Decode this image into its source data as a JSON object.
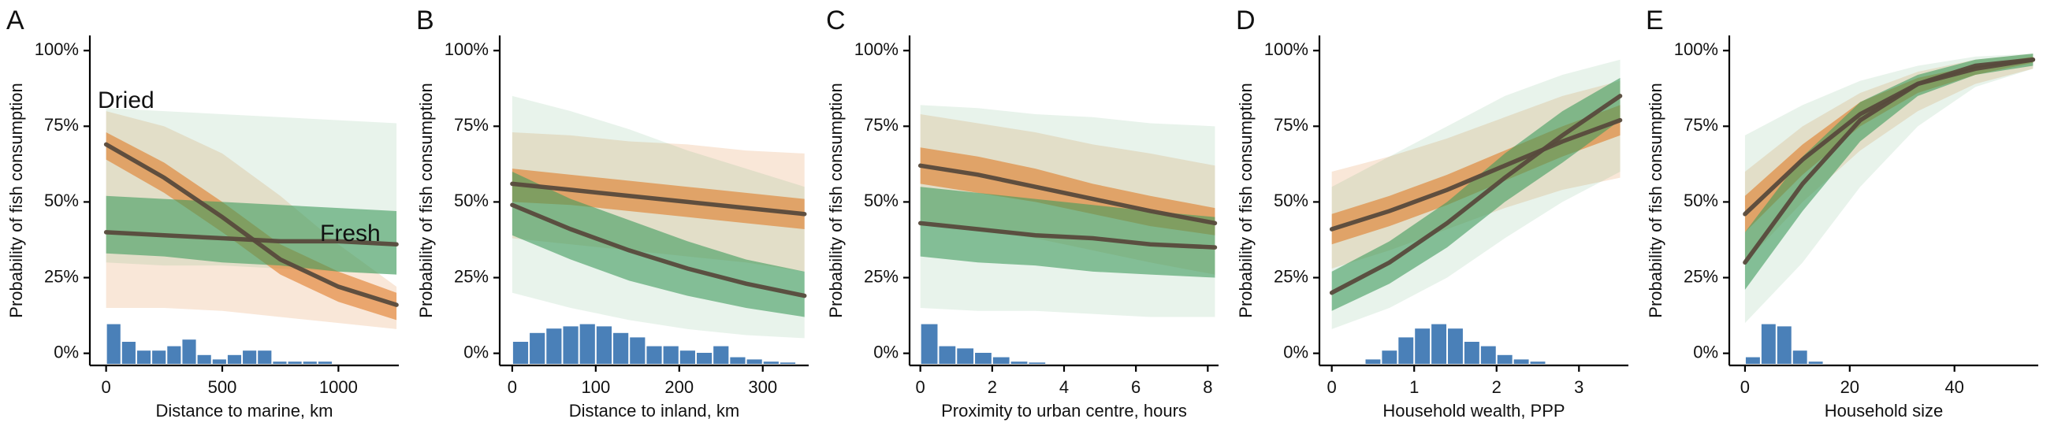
{
  "chart_data": [
    {
      "type": "line",
      "panel": "A",
      "x_label": "Distance to marine, km",
      "y_label": "Probability of fish consumption",
      "xlim": [
        -70,
        1260
      ],
      "ylim": [
        -4,
        105
      ],
      "xticks": [
        0,
        500,
        1000
      ],
      "yticks": [
        {
          "value": 0,
          "label": "0%"
        },
        {
          "value": 25,
          "label": "25%"
        },
        {
          "value": 50,
          "label": "50%"
        },
        {
          "value": 75,
          "label": "75%"
        },
        {
          "value": 100,
          "label": "100%"
        }
      ],
      "line_color": "#574a3c",
      "x": [
        0,
        250,
        500,
        750,
        1000,
        1250
      ],
      "series": [
        {
          "name": "Dried",
          "color": "#e07b28",
          "values": [
            69,
            58,
            45,
            31,
            22,
            16
          ],
          "lower": [
            64,
            53,
            40,
            26,
            17,
            11
          ],
          "upper": [
            73,
            63,
            50,
            36,
            27,
            20
          ],
          "outer_lower": [
            15,
            15,
            14,
            12,
            10,
            8
          ],
          "outer_upper": [
            80,
            75,
            66,
            52,
            36,
            22
          ]
        },
        {
          "name": "Fresh",
          "color": "#3f9b5e",
          "values": [
            40,
            39,
            38,
            37,
            37,
            36
          ],
          "lower": [
            33,
            32,
            30,
            29,
            27,
            26
          ],
          "upper": [
            52,
            51,
            50,
            49,
            48,
            47
          ],
          "outer_lower": [
            30,
            29,
            29,
            28,
            27,
            26
          ],
          "outer_upper": [
            81,
            80,
            79,
            78,
            77,
            76
          ]
        }
      ],
      "hist": {
        "color": "#4a80b8",
        "bins": [
          0,
          65,
          130,
          195,
          260,
          325,
          390,
          455,
          520,
          585,
          650,
          715,
          780,
          845,
          910,
          975
        ],
        "counts": [
          9,
          5,
          3,
          3,
          4,
          5.5,
          2,
          1,
          2,
          3,
          3,
          0.5,
          0.5,
          0.5,
          0.5
        ]
      }
    },
    {
      "type": "line",
      "panel": "B",
      "x_label": "Distance to inland, km",
      "y_label": "Probability of fish consumption",
      "xlim": [
        -15,
        355
      ],
      "ylim": [
        -4,
        105
      ],
      "xticks": [
        0,
        100,
        200,
        300
      ],
      "yticks": [
        {
          "value": 0,
          "label": "0%"
        },
        {
          "value": 25,
          "label": "25%"
        },
        {
          "value": 50,
          "label": "50%"
        },
        {
          "value": 75,
          "label": "75%"
        },
        {
          "value": 100,
          "label": "100%"
        }
      ],
      "line_color": "#574a3c",
      "x": [
        0,
        70,
        140,
        210,
        280,
        350
      ],
      "series": [
        {
          "color": "#e07b28",
          "values": [
            56,
            54,
            52,
            50,
            48,
            46
          ],
          "lower": [
            50,
            49,
            47,
            45,
            43,
            41
          ],
          "upper": [
            61,
            59,
            57,
            55,
            53,
            51
          ],
          "outer_lower": [
            38,
            36,
            34,
            32,
            30,
            27
          ],
          "outer_upper": [
            73,
            72,
            70,
            69,
            67,
            66
          ]
        },
        {
          "color": "#3f9b5e",
          "values": [
            49,
            41,
            34,
            28,
            23,
            19
          ],
          "lower": [
            39,
            31,
            24,
            19,
            15,
            12
          ],
          "upper": [
            60,
            51,
            44,
            37,
            31,
            27
          ],
          "outer_lower": [
            20,
            15,
            11,
            8,
            6,
            5
          ],
          "outer_upper": [
            85,
            80,
            74,
            67,
            61,
            55
          ]
        }
      ],
      "hist": {
        "color": "#4a80b8",
        "bins": [
          0,
          20,
          40,
          60,
          80,
          100,
          120,
          140,
          160,
          180,
          200,
          220,
          240,
          260,
          280,
          300,
          320,
          340
        ],
        "counts": [
          5,
          7,
          8,
          8.5,
          9,
          8.5,
          7,
          6,
          4,
          4,
          3,
          2.5,
          4,
          1.5,
          1,
          0.5,
          0.3
        ]
      }
    },
    {
      "type": "line",
      "panel": "C",
      "x_label": "Proximity to urban centre, hours",
      "y_label": "Probability of fish consumption",
      "xlim": [
        -0.3,
        8.3
      ],
      "ylim": [
        -4,
        105
      ],
      "xticks": [
        0,
        2,
        4,
        6,
        8
      ],
      "yticks": [
        {
          "value": 0,
          "label": "0%"
        },
        {
          "value": 25,
          "label": "25%"
        },
        {
          "value": 50,
          "label": "50%"
        },
        {
          "value": 75,
          "label": "75%"
        },
        {
          "value": 100,
          "label": "100%"
        }
      ],
      "line_color": "#574a3c",
      "x": [
        0,
        1.6,
        3.2,
        4.8,
        6.4,
        8.2
      ],
      "series": [
        {
          "color": "#e07b28",
          "values": [
            62,
            59,
            55,
            51,
            47,
            43
          ],
          "lower": [
            56,
            53,
            50,
            46,
            42,
            39
          ],
          "upper": [
            68,
            65,
            61,
            56,
            52,
            48
          ],
          "outer_lower": [
            44,
            41,
            38,
            34,
            30,
            26
          ],
          "outer_upper": [
            79,
            76,
            73,
            69,
            66,
            62
          ]
        },
        {
          "color": "#3f9b5e",
          "values": [
            43,
            41,
            39,
            38,
            36,
            35
          ],
          "lower": [
            32,
            30,
            29,
            27,
            26,
            25
          ],
          "upper": [
            55,
            53,
            51,
            49,
            47,
            45
          ],
          "outer_lower": [
            15,
            14,
            14,
            13,
            12,
            12
          ],
          "outer_upper": [
            82,
            81,
            79,
            78,
            76,
            75
          ]
        }
      ],
      "hist": {
        "color": "#4a80b8",
        "bins": [
          0,
          0.5,
          1,
          1.5,
          2,
          2.5,
          3,
          3.5
        ],
        "counts": [
          9,
          4,
          3.5,
          2.5,
          1.5,
          0.5,
          0.3
        ]
      }
    },
    {
      "type": "line",
      "panel": "D",
      "x_label": "Household wealth, PPP",
      "y_label": "Probability of fish consumption",
      "xlim": [
        -0.15,
        3.6
      ],
      "ylim": [
        -4,
        105
      ],
      "xticks": [
        0,
        1,
        2,
        3
      ],
      "yticks": [
        {
          "value": 0,
          "label": "0%"
        },
        {
          "value": 25,
          "label": "25%"
        },
        {
          "value": 50,
          "label": "50%"
        },
        {
          "value": 75,
          "label": "75%"
        },
        {
          "value": 100,
          "label": "100%"
        }
      ],
      "line_color": "#574a3c",
      "x": [
        0,
        0.7,
        1.4,
        2.1,
        2.8,
        3.5
      ],
      "series": [
        {
          "color": "#e07b28",
          "values": [
            41,
            47,
            54,
            62,
            70,
            77
          ],
          "lower": [
            36,
            42,
            49,
            57,
            65,
            72
          ],
          "upper": [
            46,
            52,
            59,
            67,
            75,
            82
          ],
          "outer_lower": [
            28,
            34,
            41,
            48,
            54,
            58
          ],
          "outer_upper": [
            60,
            65,
            71,
            78,
            85,
            90
          ]
        },
        {
          "color": "#3f9b5e",
          "values": [
            20,
            30,
            43,
            58,
            72,
            85
          ],
          "lower": [
            14,
            23,
            35,
            50,
            63,
            77
          ],
          "upper": [
            27,
            37,
            50,
            66,
            80,
            91
          ],
          "outer_lower": [
            8,
            15,
            25,
            38,
            50,
            60
          ],
          "outer_upper": [
            55,
            65,
            75,
            85,
            92,
            97
          ]
        }
      ],
      "hist": {
        "color": "#4a80b8",
        "bins": [
          0.4,
          0.6,
          0.8,
          1,
          1.2,
          1.4,
          1.6,
          1.8,
          2,
          2.2,
          2.4,
          2.6
        ],
        "counts": [
          1,
          3,
          6,
          8,
          9,
          8,
          5,
          4,
          2,
          1,
          0.5
        ]
      }
    },
    {
      "type": "line",
      "panel": "E",
      "x_label": "Household size",
      "y_label": "Probability of fish consumption",
      "xlim": [
        -3,
        56
      ],
      "ylim": [
        -4,
        105
      ],
      "xticks": [
        0,
        20,
        40
      ],
      "yticks": [
        {
          "value": 0,
          "label": "0%"
        },
        {
          "value": 25,
          "label": "25%"
        },
        {
          "value": 50,
          "label": "50%"
        },
        {
          "value": 75,
          "label": "75%"
        },
        {
          "value": 100,
          "label": "100%"
        }
      ],
      "line_color": "#574a3c",
      "x": [
        0,
        11,
        22,
        33,
        44,
        55
      ],
      "series": [
        {
          "color": "#e07b28",
          "values": [
            46,
            64,
            79,
            89,
            94,
            97
          ],
          "lower": [
            40,
            59,
            75,
            86,
            92,
            96
          ],
          "upper": [
            52,
            69,
            83,
            91,
            95,
            98
          ],
          "outer_lower": [
            30,
            50,
            67,
            80,
            89,
            94
          ],
          "outer_upper": [
            60,
            75,
            86,
            93,
            97,
            99
          ]
        },
        {
          "color": "#3f9b5e",
          "values": [
            30,
            56,
            77,
            89,
            95,
            97
          ],
          "lower": [
            21,
            47,
            70,
            85,
            92,
            95
          ],
          "upper": [
            40,
            65,
            83,
            92,
            97,
            99
          ],
          "outer_lower": [
            10,
            30,
            55,
            75,
            88,
            94
          ],
          "outer_upper": [
            72,
            82,
            90,
            95,
            98,
            99
          ]
        }
      ],
      "hist": {
        "color": "#4a80b8",
        "bins": [
          0,
          3,
          6,
          9,
          12,
          15
        ],
        "counts": [
          1.5,
          9,
          8.5,
          3,
          0.5
        ]
      }
    }
  ]
}
